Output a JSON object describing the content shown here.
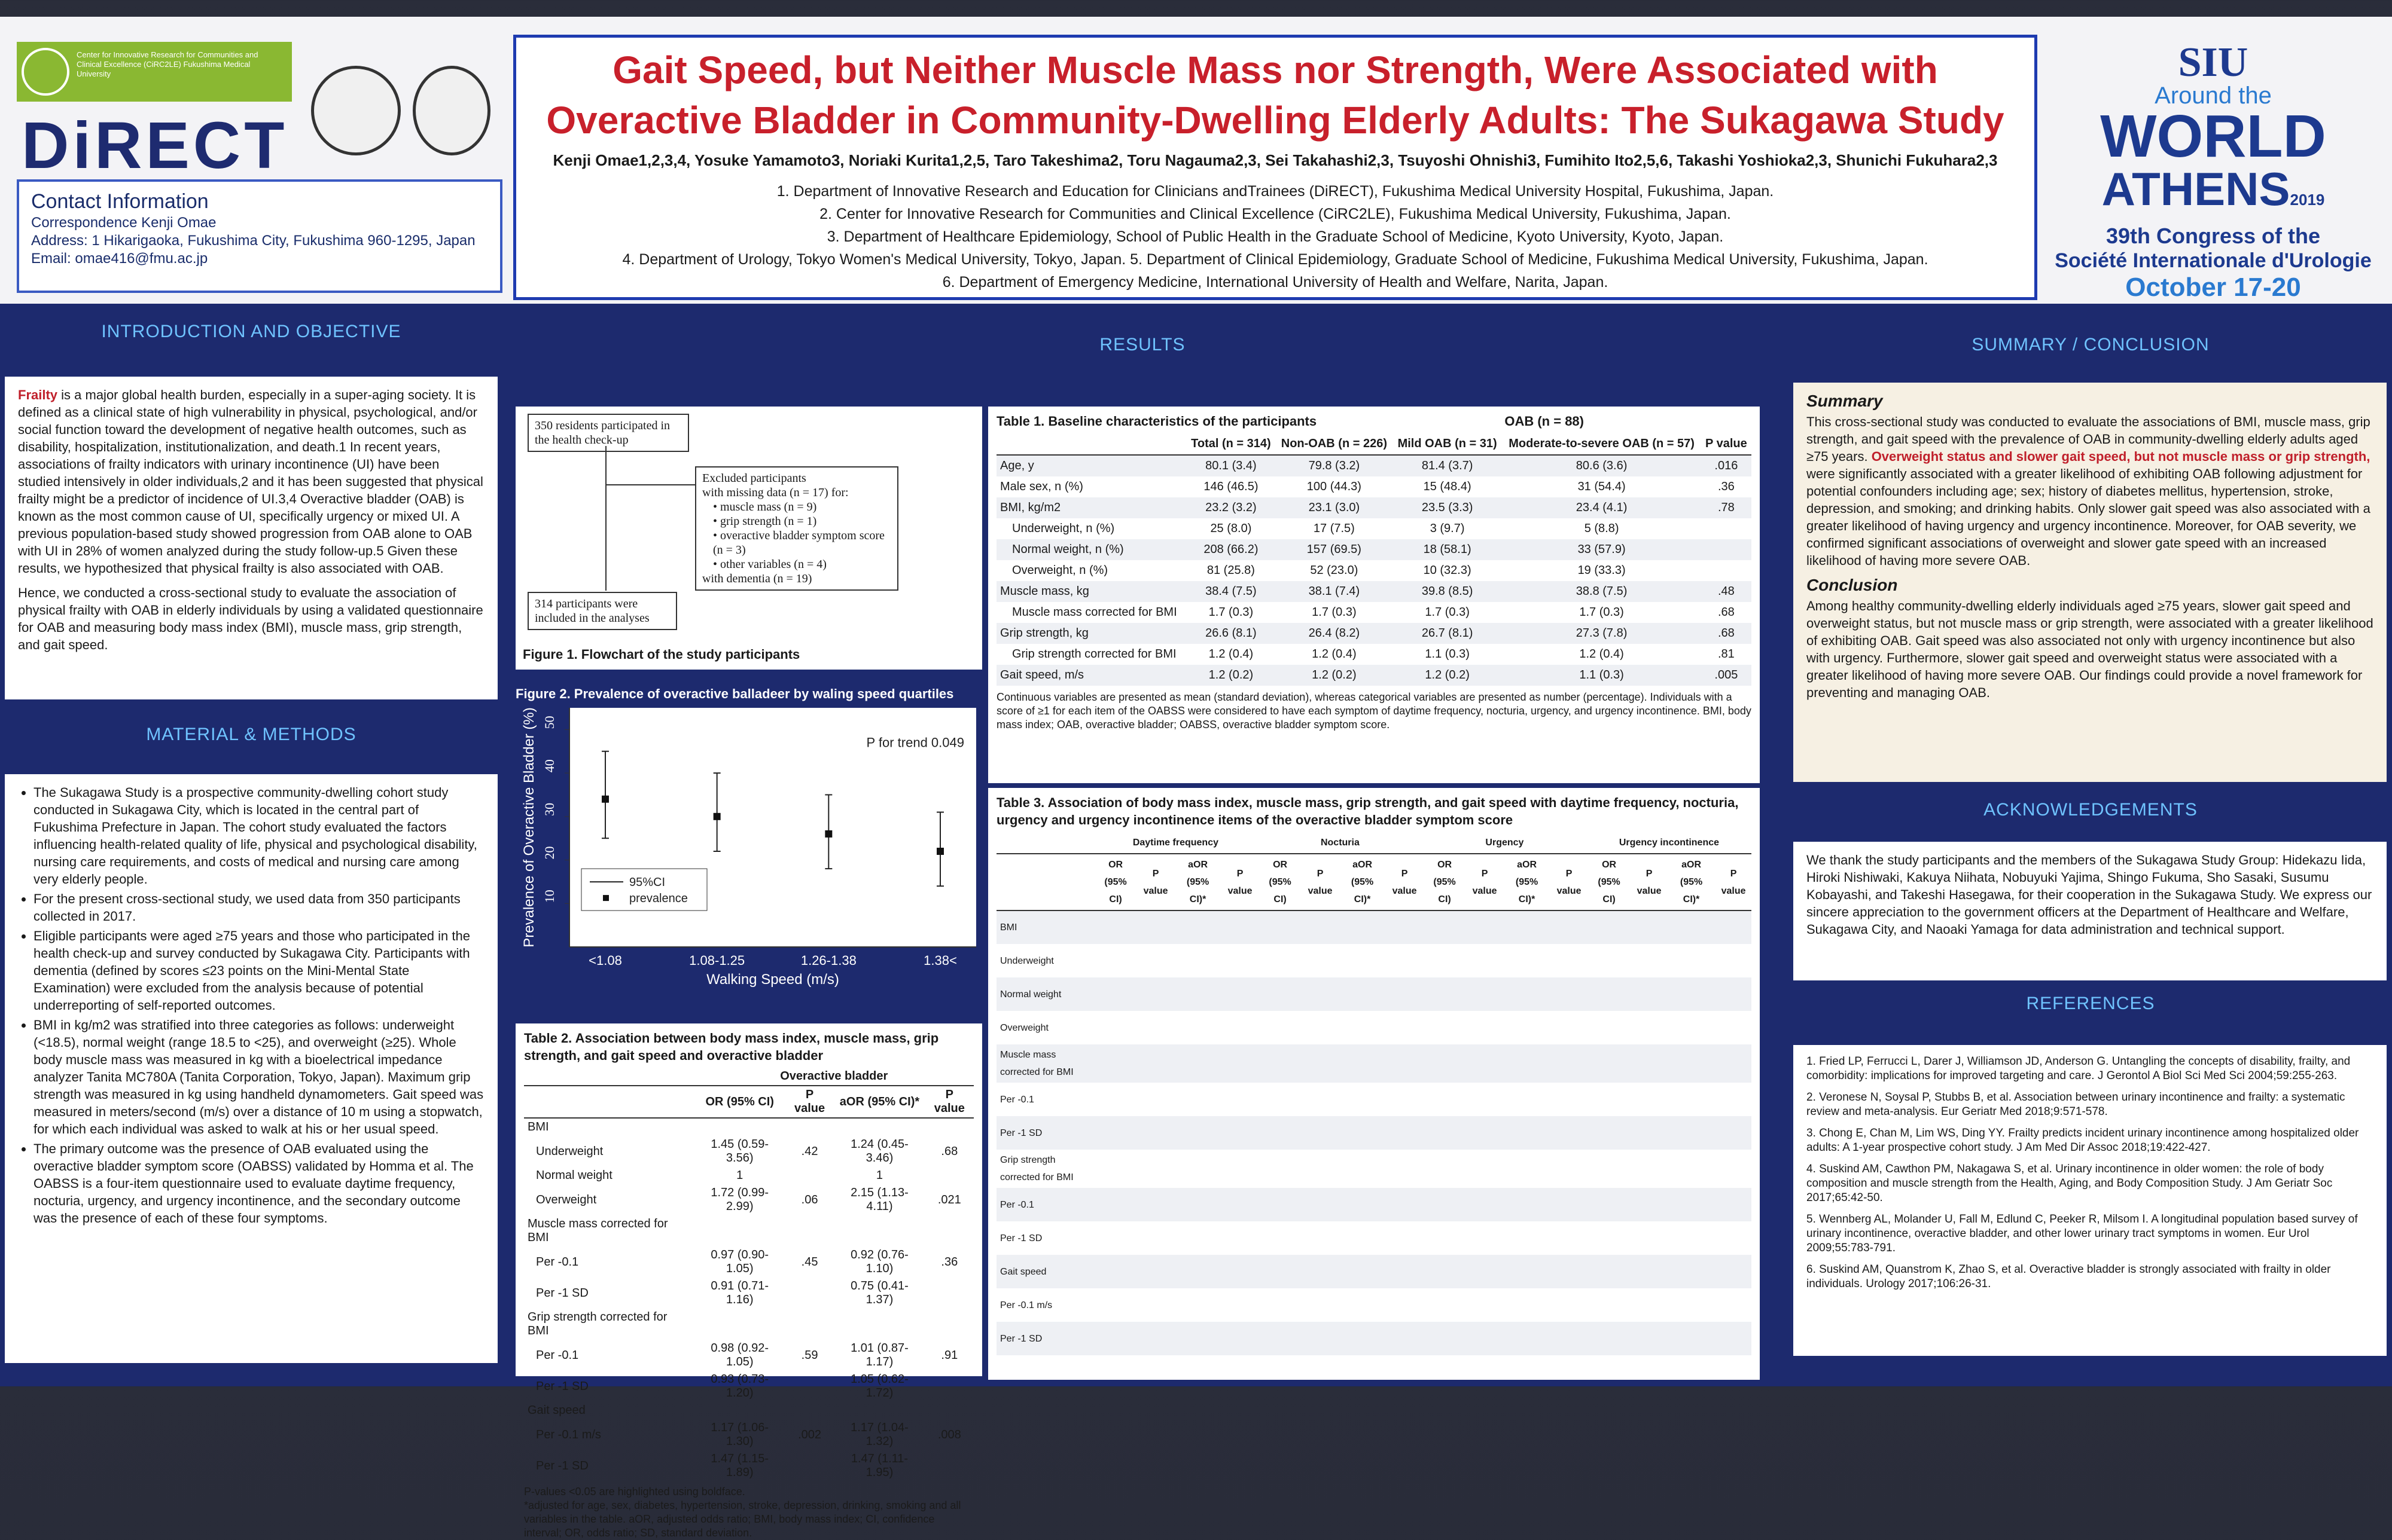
{
  "title": {
    "line1": "Gait Speed, but Neither Muscle Mass nor Strength, Were Associated with",
    "line2": "Overactive Bladder in Community-Dwelling Elderly Adults: The Sukagawa Study",
    "authors": "Kenji Omae1,2,3,4, Yosuke Yamamoto3, Noriaki Kurita1,2,5, Taro Takeshima2, Toru Nagauma2,3, Sei Takahashi2,3, Tsuyoshi Ohnishi3, Fumihito Ito2,5,6, Takashi Yoshioka2,3, Shunichi Fukuhara2,3",
    "affiliations": [
      "1. Department of Innovative Research and Education for Clinicians andTrainees (DiRECT), Fukushima Medical University Hospital, Fukushima, Japan.",
      "2. Center for Innovative Research for Communities and Clinical Excellence (CiRC2LE), Fukushima Medical University, Fukushima, Japan.",
      "3. Department of Healthcare Epidemiology, School of Public Health in the Graduate School of Medicine, Kyoto University, Kyoto, Japan.",
      "4. Department of Urology, Tokyo Women's Medical University, Tokyo, Japan.   5. Department of Clinical Epidemiology, Graduate School of Medicine, Fukushima Medical University, Fukushima, Japan.",
      "6. Department of Emergency Medicine, International University of Health and Welfare, Narita, Japan."
    ]
  },
  "logos": {
    "dirct_bar_text": "Center for Innovative Research for Communities and Clinical Excellence (CiRC2LE) Fukushima Medical University",
    "dirct": "DiRECT",
    "brand_green": "#8ab832",
    "brand_navy": "#1e2b70"
  },
  "contact": {
    "heading": "Contact Information",
    "correspondence": "Correspondence   Kenji Omae",
    "address": "Address: 1 Hikarigaoka, Fukushima City, Fukushima 960-1295, Japan",
    "email": "Email: omae416@fmu.ac.jp"
  },
  "conference": {
    "siu": "SIU",
    "around": "Around the",
    "world": "WORLD",
    "athens": "ATHENS",
    "year": "2019",
    "congress": "39th Congress of the",
    "society": "Société Internationale d'Urologie",
    "dates": "October 17-20"
  },
  "intro": {
    "heading": "INTRODUCTION AND OBJECTIVE",
    "p1_lead": "Frailty",
    "p1": " is a major global health burden, especially in a super-aging society. It is defined as a clinical state of high vulnerability in physical, psychological, and/or social function toward the development of negative health outcomes, such as disability, hospitalization, institutionalization, and death.1 In recent years, associations of frailty indicators with urinary incontinence (UI) have been studied intensively in older individuals,2 and it has been suggested that physical frailty might be a predictor of incidence of UI.3,4 Overactive bladder (OAB) is known as the most common cause of UI, specifically urgency or mixed UI. A previous population-based study showed progression from OAB alone to OAB with UI in 28% of women analyzed during the study follow-up.5 Given these results, we hypothesized that physical frailty is also associated with OAB.",
    "p2": "Hence, we conducted a cross-sectional study to evaluate the association of physical frailty with OAB in elderly individuals by using a validated questionnaire for OAB and measuring body mass index (BMI), muscle mass, grip strength, and gait speed."
  },
  "methods": {
    "heading": "MATERIAL & METHODS",
    "items": [
      "The Sukagawa Study is a prospective community-dwelling cohort study conducted in Sukagawa City, which is located in the central part of Fukushima Prefecture in Japan. The cohort study evaluated the factors influencing health-related quality of life, physical and psychological disability, nursing care requirements, and costs of medical and nursing care among very elderly people.",
      "For the present cross-sectional study, we used data from 350 participants collected in 2017.",
      "Eligible participants were aged ≥75 years and those who participated in the health check-up and survey conducted by Sukagawa City. Participants with dementia (defined by scores ≤23 points on the Mini-Mental State Examination) were excluded from the analysis because of potential underreporting of self-reported outcomes.",
      "BMI in kg/m2 was stratified into three categories as follows: underweight (<18.5), normal weight (range 18.5 to <25), and overweight (≥25). Whole body muscle mass was measured in kg with a bioelectrical impedance analyzer Tanita MC780A (Tanita Corporation, Tokyo, Japan). Maximum grip strength was measured in kg using handheld dynamometers. Gait speed was measured in meters/second (m/s) over a distance of 10 m using a stopwatch, for which each individual was asked to walk at his or her usual speed.",
      "The primary outcome was the presence of OAB evaluated using the overactive bladder symptom score (OABSS) validated by Homma et al. The OABSS is a four-item questionnaire used to evaluate daytime frequency, nocturia, urgency, and urgency incontinence, and the secondary outcome was the presence of each of these four symptoms."
    ]
  },
  "results": {
    "heading": "RESULTS",
    "flow": {
      "start": "350 residents participated in the health check-up",
      "excluded_title": "Excluded participants",
      "excluded_lines": [
        "with missing data (n = 17) for:",
        "• muscle mass (n = 9)",
        "• grip strength (n = 1)",
        "• overactive bladder symptom score (n = 3)",
        "• other variables (n = 4)",
        "with dementia (n = 19)"
      ],
      "end": "314 participants were included in the analyses",
      "caption": "Figure 1. Flowchart of the study participants"
    },
    "fig2": {
      "caption": "Figure 2. Prevalence of overactive balladeer by waling speed quartiles",
      "ptrend": "P for trend 0.049",
      "legend_ci": "95%CI",
      "legend_prev": "prevalence"
    },
    "table1": {
      "title": "Table 1. Baseline characteristics of the participants",
      "oab_group": "OAB (n = 88)",
      "headers": [
        "",
        "Total (n = 314)",
        "Non-OAB (n = 226)",
        "Mild OAB (n = 31)",
        "Moderate-to-severe OAB (n = 57)",
        "P value"
      ],
      "rows": [
        [
          "Age, y",
          "80.1 (3.4)",
          "79.8 (3.2)",
          "81.4 (3.7)",
          "80.6 (3.6)",
          ".016"
        ],
        [
          "Male sex, n (%)",
          "146 (46.5)",
          "100 (44.3)",
          "15 (48.4)",
          "31 (54.4)",
          ".36"
        ],
        [
          "BMI, kg/m2",
          "23.2 (3.2)",
          "23.1 (3.0)",
          "23.5 (3.3)",
          "23.4 (4.1)",
          ".78"
        ],
        [
          "Underweight, n (%)",
          "25 (8.0)",
          "17 (7.5)",
          "3 (9.7)",
          "5 (8.8)",
          ""
        ],
        [
          "Normal weight, n (%)",
          "208 (66.2)",
          "157 (69.5)",
          "18 (58.1)",
          "33 (57.9)",
          ""
        ],
        [
          "Overweight, n (%)",
          "81 (25.8)",
          "52 (23.0)",
          "10 (32.3)",
          "19 (33.3)",
          ""
        ],
        [
          "Muscle mass, kg",
          "38.4 (7.5)",
          "38.1 (7.4)",
          "39.8 (8.5)",
          "38.8 (7.5)",
          ".48"
        ],
        [
          "Muscle mass corrected for BMI",
          "1.7 (0.3)",
          "1.7 (0.3)",
          "1.7 (0.3)",
          "1.7 (0.3)",
          ".68"
        ],
        [
          "Grip strength, kg",
          "26.6 (8.1)",
          "26.4 (8.2)",
          "26.7 (8.1)",
          "27.3 (7.8)",
          ".68"
        ],
        [
          "Grip strength corrected for BMI",
          "1.2 (0.4)",
          "1.2 (0.4)",
          "1.1 (0.3)",
          "1.2 (0.4)",
          ".81"
        ],
        [
          "Gait speed, m/s",
          "1.2 (0.2)",
          "1.2 (0.2)",
          "1.2 (0.2)",
          "1.1 (0.3)",
          ".005"
        ]
      ],
      "note": "Continuous variables are presented as mean (standard deviation), whereas categorical variables are presented as number (percentage). Individuals with a score of ≥1 for each item of the OABSS were considered to have each symptom of daytime frequency, nocturia, urgency, and urgency incontinence.     BMI, body mass index; OAB, overactive bladder; OABSS, overactive bladder symptom score."
    },
    "table2": {
      "title": "Table 2. Association between body mass index, muscle mass, grip strength, and gait speed and overactive bladder",
      "group": "Overactive bladder",
      "headers": [
        "",
        "OR (95% CI)",
        "P value",
        "aOR (95% CI)*",
        "P value"
      ],
      "rows": [
        [
          "BMI",
          "",
          "",
          "",
          ""
        ],
        [
          "Underweight",
          "1.45 (0.59-3.56)",
          ".42",
          "1.24 (0.45-3.46)",
          ".68"
        ],
        [
          "Normal weight",
          "1",
          "",
          "1",
          ""
        ],
        [
          "Overweight",
          "1.72 (0.99-2.99)",
          ".06",
          "2.15 (1.13-4.11)",
          ".021"
        ],
        [
          "Muscle mass corrected for BMI",
          "",
          "",
          "",
          ""
        ],
        [
          "Per -0.1",
          "0.97 (0.90-1.05)",
          ".45",
          "0.92 (0.76-1.10)",
          ".36"
        ],
        [
          "Per -1 SD",
          "0.91 (0.71-1.16)",
          "",
          "0.75 (0.41-1.37)",
          ""
        ],
        [
          "Grip strength corrected for BMI",
          "",
          "",
          "",
          ""
        ],
        [
          "Per -0.1",
          "0.98 (0.92-1.05)",
          ".59",
          "1.01 (0.87-1.17)",
          ".91"
        ],
        [
          "Per -1 SD",
          "0.93 (0.73-1.20)",
          "",
          "1.05 (0.62-1.72)",
          ""
        ],
        [
          "Gait speed",
          "",
          "",
          "",
          ""
        ],
        [
          "Per -0.1 m/s",
          "1.17 (1.06-1.30)",
          ".002",
          "1.17 (1.04-1.32)",
          ".008"
        ],
        [
          "Per -1 SD",
          "1.47 (1.15-1.89)",
          "",
          "1.47 (1.11-1.95)",
          ""
        ]
      ],
      "note1": "P-values <0.05 are highlighted using boldface.",
      "note2": "*adjusted for age, sex, diabetes, hypertension, stroke, depression, drinking, smoking and all variables in the table.   aOR, adjusted odds ratio; BMI, body mass index; CI, confidence interval; OR, odds ratio; SD, standard deviation."
    },
    "table3": {
      "title": "Table 3. Association of body mass index, muscle mass, grip strength, and gait speed with daytime frequency, nocturia, urgency and urgency incontinence items of the overactive bladder symptom score",
      "groups": [
        "Daytime frequency",
        "Nocturia",
        "Urgency",
        "Urgency incontinence"
      ],
      "subheaders": [
        "OR (95% CI)",
        "P value",
        "aOR (95% CI)*",
        "P value"
      ],
      "row_labels": [
        "BMI",
        "Underweight",
        "Normal weight",
        "Overweight",
        "Muscle mass corrected for BMI",
        "Per -0.1",
        "Per -1 SD",
        "Grip strength corrected for BMI",
        "Per -0.1",
        "Per -1 SD",
        "Gait speed",
        "Per -0.1 m/s",
        "Per -1 SD"
      ]
    }
  },
  "summary": {
    "heading": "SUMMARY / CONCLUSION",
    "summary_title": "Summary",
    "summary_a": "This cross-sectional study was conducted to evaluate the associations of BMI, muscle mass, grip strength, and gait speed with the prevalence of OAB in community-dwelling elderly adults aged ≥75 years. ",
    "summary_red": "Overweight status and slower gait speed, but not muscle mass or grip strength,",
    "summary_b": " were significantly associated with a greater likelihood of exhibiting OAB following adjustment for potential confounders including age; sex; history of diabetes mellitus, hypertension, stroke, depression, and smoking; and drinking habits. Only slower gait speed was also associated with a greater likelihood of having urgency and urgency incontinence. Moreover, for OAB severity, we confirmed significant associations of overweight and slower gate speed with an increased likelihood of having more severe OAB.",
    "conclusion_title": "Conclusion",
    "conclusion": "Among healthy community-dwelling elderly individuals aged ≥75 years, slower gait speed and overweight status, but not muscle mass or grip strength, were associated with a greater likelihood of exhibiting OAB. Gait speed was also associated not only with urgency incontinence but also with urgency. Furthermore, slower gait speed and overweight status were associated with a greater likelihood of having more severe OAB. Our findings could provide a novel framework for preventing and managing OAB."
  },
  "ack": {
    "heading": "ACKNOWLEDGEMENTS",
    "text": "We thank the study participants and the members of the Sukagawa Study Group: Hidekazu Iida, Hiroki Nishiwaki, Kakuya Niihata, Nobuyuki Yajima, Shingo Fukuma, Sho Sasaki, Susumu Kobayashi, and Takeshi Hasegawa, for their cooperation in the Sukagawa Study. We express our sincere appreciation to the government officers at the Department of Healthcare and Welfare, Sukagawa City, and Naoaki Yamaga for data administration and technical support."
  },
  "references": {
    "heading": "REFERENCES",
    "items": [
      "1. Fried LP, Ferrucci L, Darer J, Williamson JD, Anderson G. Untangling the concepts of disability, frailty, and comorbidity: implications for improved targeting and care. J Gerontol A Biol Sci Med Sci 2004;59:255-263.",
      "2. Veronese N, Soysal P, Stubbs B, et al. Association between urinary incontinence and frailty: a systematic review and meta-analysis. Eur Geriatr Med 2018;9:571-578.",
      "3. Chong E, Chan M, Lim WS, Ding YY. Frailty predicts incident urinary incontinence among hospitalized older adults: A 1-year prospective cohort study. J Am Med Dir Assoc 2018;19:422-427.",
      "4. Suskind AM, Cawthon PM, Nakagawa S, et al. Urinary incontinence in older women: the role of body composition and muscle strength from the Health, Aging, and Body Composition Study. J Am Geriatr Soc 2017;65:42-50.",
      "5. Wennberg AL, Molander U, Fall M, Edlund C, Peeker R, Milsom I. A longitudinal population based survey of urinary incontinence, overactive bladder, and other lower urinary tract symptoms in women. Eur Urol 2009;55:783-791.",
      "6. Suskind AM, Quanstrom K, Zhao S, et al. Overactive bladder is strongly associated with frailty in older individuals. Urology 2017;106:26-31."
    ]
  },
  "chart_data": {
    "type": "scatter",
    "title": "Figure 2. Prevalence of overactive balladeer by waling speed quartiles",
    "xlabel": "Walking Speed (m/s)",
    "ylabel": "Prevalence of Overactive Bladder (%)",
    "categories": [
      "<1.08",
      "1.08-1.25",
      "1.26-1.38",
      "1.38<"
    ],
    "values": [
      34,
      30,
      26,
      22
    ],
    "ci_low": [
      25,
      22,
      18,
      14
    ],
    "ci_high": [
      45,
      40,
      35,
      31
    ],
    "ylim": [
      0,
      55
    ],
    "yticks": [
      10,
      20,
      30,
      40,
      50
    ],
    "annotation": "P for trend 0.049",
    "legend": [
      "95%CI",
      "prevalence"
    ],
    "legend_position": "bottom-left"
  }
}
